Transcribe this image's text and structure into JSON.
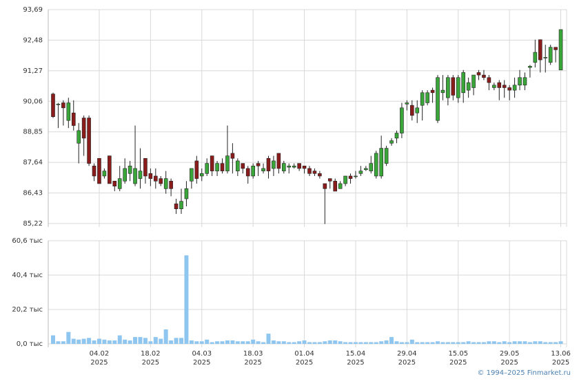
{
  "chart_data": [
    {
      "type": "candlestick",
      "categories": [
        null,
        null,
        null,
        null,
        null,
        null,
        null,
        null,
        null,
        "04.02",
        null,
        null,
        null,
        null,
        null,
        null,
        null,
        null,
        null,
        "18.02",
        null,
        null,
        null,
        null,
        null,
        null,
        null,
        null,
        null,
        "04.03",
        null,
        null,
        null,
        null,
        null,
        null,
        null,
        null,
        null,
        "18.03",
        null,
        null,
        null,
        null,
        null,
        null,
        null,
        null,
        null,
        "01.04",
        null,
        null,
        null,
        null,
        null,
        null,
        null,
        null,
        null,
        "15.04",
        null,
        null,
        null,
        null,
        null,
        null,
        null,
        null,
        null,
        "29.04",
        null,
        null,
        null,
        null,
        null,
        null,
        null,
        null,
        null,
        "15.05",
        null,
        null,
        null,
        null,
        null,
        null,
        null,
        null,
        null,
        "29.05",
        null,
        null,
        null,
        null,
        null,
        null,
        null,
        null,
        null,
        "13.06"
      ],
      "year": "2025",
      "open": [
        90.35,
        89.95,
        90.0,
        89.3,
        89.6,
        88.4,
        89.4,
        89.4,
        87.5,
        87.8,
        87.1,
        87.9,
        86.9,
        86.6,
        86.9,
        87.2,
        86.8,
        87.0,
        87.8,
        87.2,
        87.1,
        87.0,
        86.6,
        86.9,
        86.0,
        85.8,
        86.2,
        86.9,
        87.7,
        87.1,
        87.2,
        87.9,
        87.3,
        87.6,
        87.3,
        88.0,
        87.3,
        87.6,
        87.4,
        87.1,
        87.6,
        87.3,
        87.8,
        87.4,
        88.0,
        87.3,
        87.45,
        87.45,
        87.6,
        87.5,
        87.4,
        87.3,
        87.2,
        86.8,
        87.0,
        86.9,
        86.6,
        86.8,
        87.1,
        87.1,
        87.2,
        87.35,
        87.3,
        87.1,
        87.1,
        87.6,
        88.4,
        88.6,
        88.8,
        89.95,
        89.9,
        89.6,
        89.9,
        90.0,
        90.5,
        89.3,
        90.4,
        90.2,
        91.0,
        90.2,
        90.4,
        90.5,
        90.6,
        91.2,
        91.1,
        91.0,
        90.6,
        90.8,
        90.7,
        90.6,
        90.5,
        90.7,
        90.7,
        91.4,
        91.6,
        92.5,
        91.8,
        91.6,
        92.2,
        91.3
      ],
      "high": [
        90.4,
        90.0,
        90.1,
        90.2,
        90.1,
        89.2,
        89.5,
        89.5,
        87.6,
        87.8,
        87.4,
        87.9,
        86.9,
        87.5,
        87.8,
        87.7,
        89.1,
        88.2,
        87.8,
        87.4,
        87.4,
        87.1,
        87.3,
        87.0,
        86.2,
        86.6,
        86.9,
        87.4,
        87.9,
        87.4,
        87.8,
        87.9,
        87.7,
        87.8,
        89.1,
        88.4,
        87.8,
        87.6,
        87.5,
        87.6,
        87.7,
        87.6,
        87.9,
        87.9,
        88.0,
        87.7,
        87.6,
        87.6,
        87.6,
        87.5,
        87.5,
        87.4,
        87.3,
        86.8,
        87.0,
        87.0,
        86.9,
        87.1,
        87.2,
        87.3,
        87.5,
        87.5,
        87.9,
        88.1,
        88.7,
        88.3,
        88.6,
        88.9,
        90.0,
        90.1,
        90.1,
        90.1,
        90.5,
        90.5,
        90.6,
        91.1,
        91.1,
        91.1,
        91.1,
        91.1,
        91.3,
        91.0,
        91.1,
        91.3,
        91.3,
        91.1,
        90.8,
        90.9,
        90.9,
        90.7,
        91.0,
        91.3,
        91.2,
        91.5,
        92.5,
        92.5,
        92.3,
        92.3,
        92.2,
        92.9
      ],
      "low": [
        89.4,
        89.0,
        89.1,
        89.0,
        88.9,
        87.6,
        87.9,
        87.5,
        86.9,
        86.8,
        87.0,
        86.8,
        86.5,
        86.5,
        86.8,
        86.9,
        86.7,
        86.6,
        86.8,
        86.7,
        86.6,
        86.7,
        86.4,
        86.3,
        85.6,
        85.6,
        85.9,
        86.6,
        86.8,
        86.9,
        87.1,
        87.1,
        87.1,
        87.2,
        87.2,
        87.2,
        87.1,
        87.2,
        86.8,
        87.0,
        87.1,
        87.2,
        87.0,
        87.1,
        87.2,
        87.2,
        87.2,
        87.4,
        87.3,
        87.2,
        87.1,
        87.1,
        87.0,
        85.2,
        86.6,
        86.5,
        86.6,
        86.7,
        86.8,
        87.0,
        87.1,
        87.3,
        87.2,
        87.0,
        87.0,
        87.5,
        88.3,
        88.4,
        88.6,
        89.7,
        89.3,
        89.2,
        89.3,
        89.9,
        90.0,
        89.2,
        90.1,
        89.9,
        90.1,
        90.0,
        90.0,
        90.2,
        90.3,
        90.9,
        90.9,
        90.5,
        90.5,
        90.1,
        90.2,
        90.1,
        90.2,
        90.5,
        90.5,
        91.0,
        91.4,
        91.2,
        91.2,
        91.5,
        91.6,
        91.3
      ],
      "close": [
        89.45,
        89.95,
        89.8,
        90.0,
        89.1,
        88.9,
        88.6,
        87.6,
        87.1,
        86.8,
        87.3,
        86.8,
        86.7,
        87.0,
        87.4,
        87.5,
        87.4,
        87.3,
        87.1,
        87.0,
        86.9,
        86.8,
        87.0,
        86.6,
        85.8,
        86.1,
        86.6,
        87.4,
        87.0,
        87.2,
        87.6,
        87.3,
        87.6,
        87.3,
        87.9,
        87.8,
        87.7,
        87.4,
        87.1,
        87.5,
        87.5,
        87.4,
        87.3,
        87.7,
        87.4,
        87.6,
        87.5,
        87.5,
        87.4,
        87.4,
        87.2,
        87.2,
        87.1,
        86.6,
        86.9,
        86.5,
        86.8,
        87.1,
        87.0,
        87.1,
        87.3,
        87.4,
        87.6,
        88.0,
        88.2,
        88.2,
        88.5,
        88.8,
        89.8,
        90.0,
        89.5,
        89.8,
        90.4,
        90.4,
        90.4,
        91.0,
        90.5,
        91.0,
        90.3,
        91.0,
        91.2,
        90.8,
        91.1,
        91.1,
        91.0,
        90.8,
        90.7,
        90.6,
        90.6,
        90.5,
        90.7,
        91.0,
        91.0,
        91.45,
        92.0,
        91.7,
        91.8,
        92.2,
        92.1,
        92.9
      ],
      "up_color": "#3aa63a",
      "down_color": "#8b1c1c",
      "ylim": [
        85.22,
        93.69
      ],
      "yticks": [
        {
          "value": 85.22,
          "label": "85,22"
        },
        {
          "value": 86.43,
          "label": "86,43"
        },
        {
          "value": 87.64,
          "label": "87,64"
        },
        {
          "value": 88.85,
          "label": "88,85"
        },
        {
          "value": 90.06,
          "label": "90,06"
        },
        {
          "value": 91.27,
          "label": "91,27"
        },
        {
          "value": 92.48,
          "label": "92,48"
        },
        {
          "value": 93.69,
          "label": "93,69"
        }
      ],
      "grid": true
    },
    {
      "type": "bar",
      "values": [
        5,
        1.5,
        1.5,
        7,
        3,
        2.5,
        3,
        3.5,
        2,
        3,
        2.5,
        2,
        2,
        5,
        2.5,
        2,
        4,
        4,
        3.5,
        1.5,
        4,
        3,
        8.5,
        2,
        3.5,
        3.5,
        52,
        2,
        1.5,
        1.5,
        2.5,
        1,
        1.5,
        1.5,
        2,
        2,
        1.5,
        1.5,
        1.5,
        2.5,
        1.5,
        1,
        6,
        2,
        1.5,
        1.5,
        1,
        1,
        1.5,
        2,
        1,
        1,
        1,
        1.5,
        2,
        2,
        1.5,
        1,
        1,
        1,
        1,
        1,
        1,
        1,
        1.5,
        2,
        4,
        1.5,
        1,
        1,
        2.5,
        1,
        1,
        1,
        1,
        1.5,
        1,
        1,
        1,
        1,
        1,
        1.5,
        1,
        1,
        1,
        1.5,
        1.5,
        1,
        1.5,
        1,
        1.5,
        1.5,
        1.5,
        1,
        1.5,
        1.5,
        1,
        1,
        1,
        1.5
      ],
      "color": "#8ec6f0",
      "ylim": [
        0,
        60.6
      ],
      "yticks": [
        {
          "value": 0,
          "label": "0,0 тыс"
        },
        {
          "value": 20.2,
          "label": "20,2 тыс"
        },
        {
          "value": 40.4,
          "label": "40,4 тыс"
        },
        {
          "value": 60.6,
          "label": "60,6 тыс"
        }
      ],
      "grid": true
    }
  ],
  "footer": "© 1994–2025 Finmarket.ru"
}
